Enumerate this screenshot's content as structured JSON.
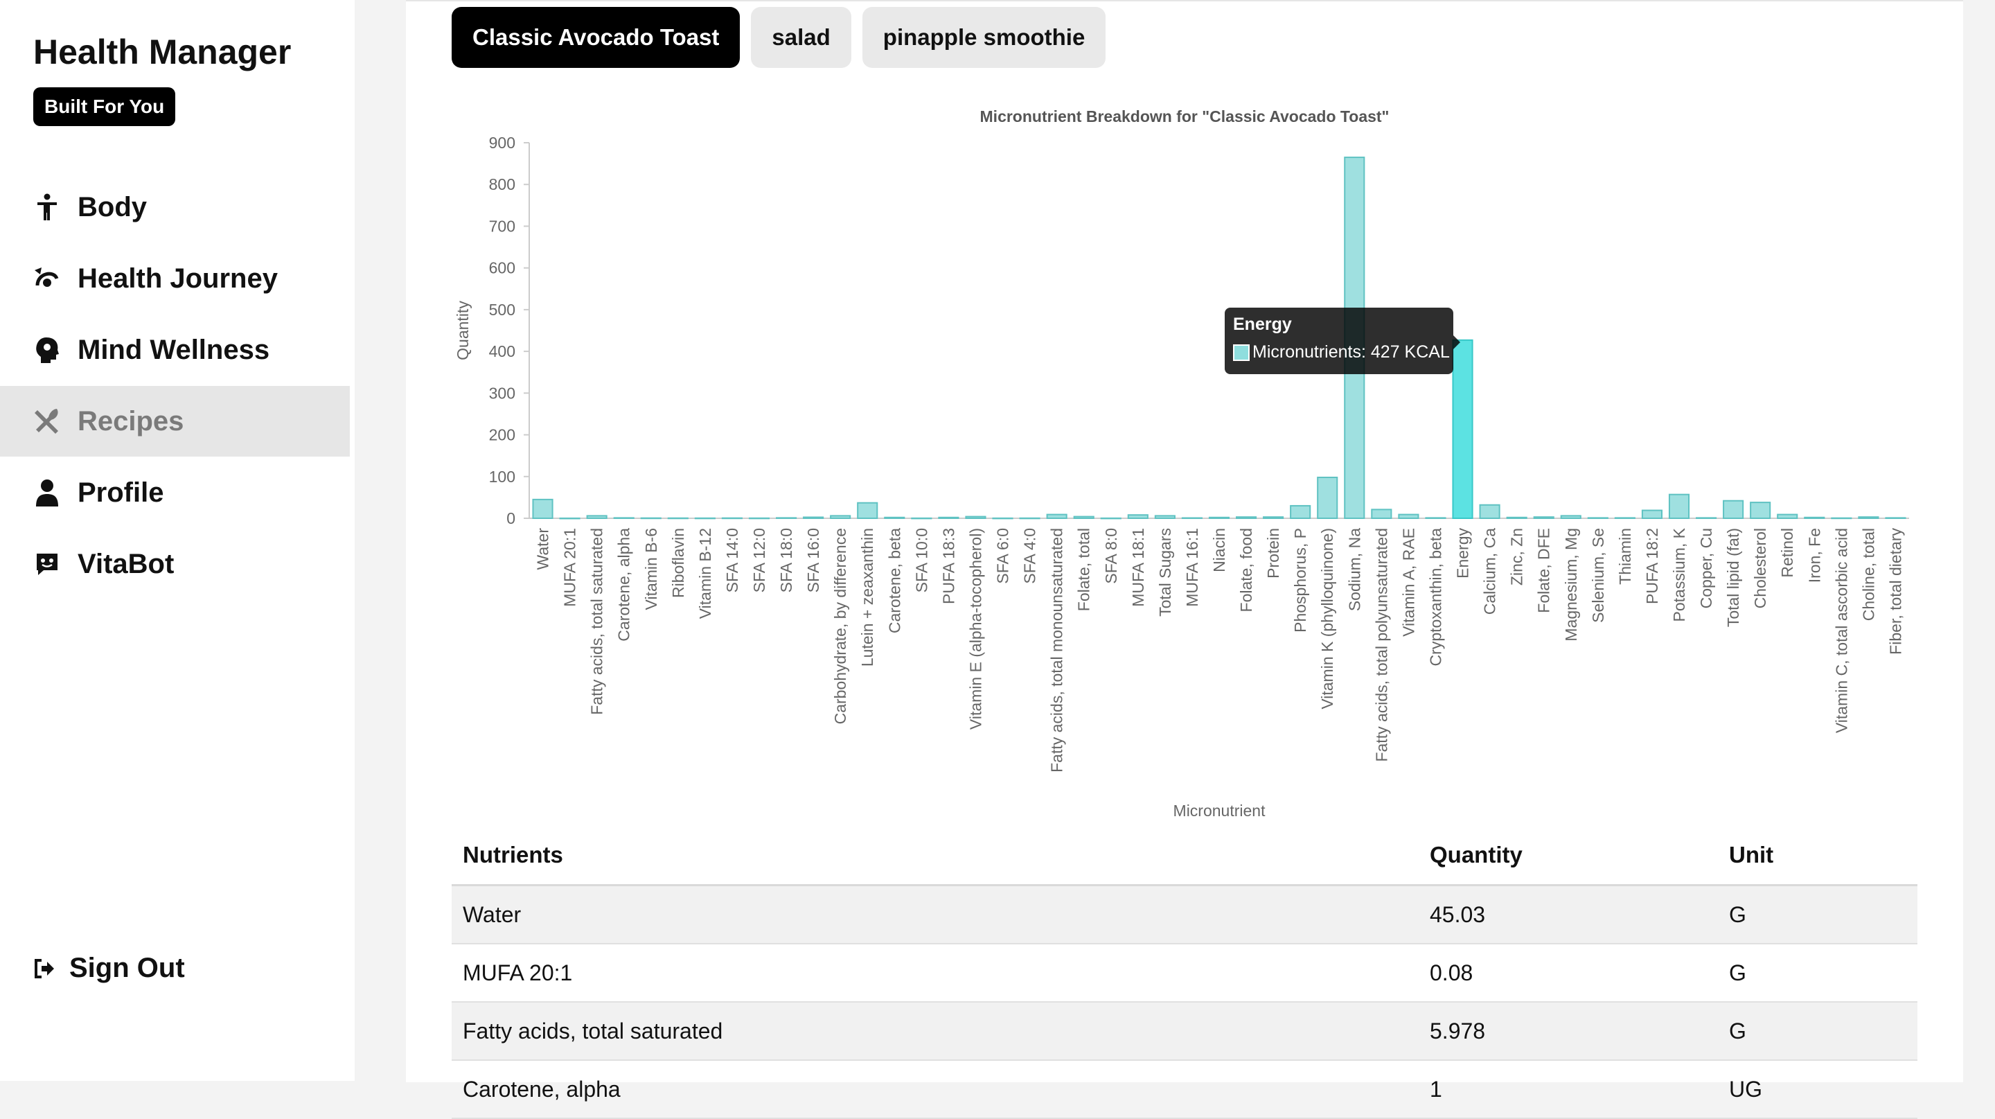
{
  "sidebar": {
    "brand": "Health Manager",
    "badge": "Built For You",
    "items": [
      {
        "label": "Body",
        "icon": "figure-icon"
      },
      {
        "label": "Health Journey",
        "icon": "journey-icon"
      },
      {
        "label": "Mind Wellness",
        "icon": "mind-icon"
      },
      {
        "label": "Recipes",
        "icon": "utensils-icon",
        "active": true
      },
      {
        "label": "Profile",
        "icon": "user-icon"
      },
      {
        "label": "VitaBot",
        "icon": "chat-bot-icon"
      }
    ],
    "signout": "Sign Out"
  },
  "tabs": [
    "Classic Avocado Toast",
    "salad",
    "pinapple smoothie"
  ],
  "tooltip": {
    "title": "Energy",
    "row": "Micronutrients: 427 KCAL"
  },
  "chart_data": {
    "type": "bar",
    "title": "Micronutrient Breakdown for \"Classic Avocado Toast\"",
    "xlabel": "Micronutrient",
    "ylabel": "Quantity",
    "ylim": [
      0,
      900
    ],
    "yticks": [
      0,
      100,
      200,
      300,
      400,
      500,
      600,
      700,
      800,
      900
    ],
    "grid": false,
    "highlighted": "Energy",
    "colors": {
      "fill": "#9fe0e0",
      "stroke": "#5fc2c2",
      "highlight_fill": "#5ce2e2",
      "highlight_stroke": "#38c8c8"
    },
    "categories": [
      "Water",
      "MUFA 20:1",
      "Fatty acids, total saturated",
      "Carotene, alpha",
      "Vitamin B-6",
      "Riboflavin",
      "Vitamin B-12",
      "SFA 14:0",
      "SFA 12:0",
      "SFA 18:0",
      "SFA 16:0",
      "Carbohydrate, by difference",
      "Lutein + zeaxanthin",
      "Carotene, beta",
      "SFA 10:0",
      "PUFA 18:3",
      "Vitamin E (alpha-tocopherol)",
      "SFA 6:0",
      "SFA 4:0",
      "Fatty acids, total monounsaturated",
      "Folate, total",
      "SFA 8:0",
      "MUFA 18:1",
      "Total Sugars",
      "MUFA 16:1",
      "Niacin",
      "Folate, food",
      "Protein",
      "Phosphorus, P",
      "Vitamin K (phylloquinone)",
      "Sodium, Na",
      "Fatty acids, total polyunsaturated",
      "Vitamin A, RAE",
      "Cryptoxanthin, beta",
      "Energy",
      "Calcium, Ca",
      "Zinc, Zn",
      "Folate, DFE",
      "Magnesium, Mg",
      "Selenium, Se",
      "Thiamin",
      "PUFA 18:2",
      "Potassium, K",
      "Copper, Cu",
      "Total lipid (fat)",
      "Cholesterol",
      "Retinol",
      "Iron, Fe",
      "Vitamin C, total ascorbic acid",
      "Choline, total",
      "Fiber, total dietary"
    ],
    "values": [
      45.03,
      0.08,
      5.978,
      1,
      0.5,
      0.4,
      0.3,
      0.5,
      0.3,
      1,
      2.5,
      6,
      37,
      2,
      0.2,
      2,
      4,
      0.2,
      0.3,
      9,
      4,
      0.2,
      8,
      6,
      0.8,
      2,
      3,
      3,
      30,
      98,
      865,
      21,
      9,
      1,
      427,
      32,
      2,
      3,
      6,
      1,
      1,
      19,
      57,
      1,
      42,
      38,
      9,
      2,
      0.5,
      3,
      1
    ]
  },
  "table": {
    "headers": [
      "Nutrients",
      "Quantity",
      "Unit"
    ],
    "rows": [
      [
        "Water",
        "45.03",
        "G"
      ],
      [
        "MUFA 20:1",
        "0.08",
        "G"
      ],
      [
        "Fatty acids, total saturated",
        "5.978",
        "G"
      ],
      [
        "Carotene, alpha",
        "1",
        "UG"
      ]
    ]
  }
}
